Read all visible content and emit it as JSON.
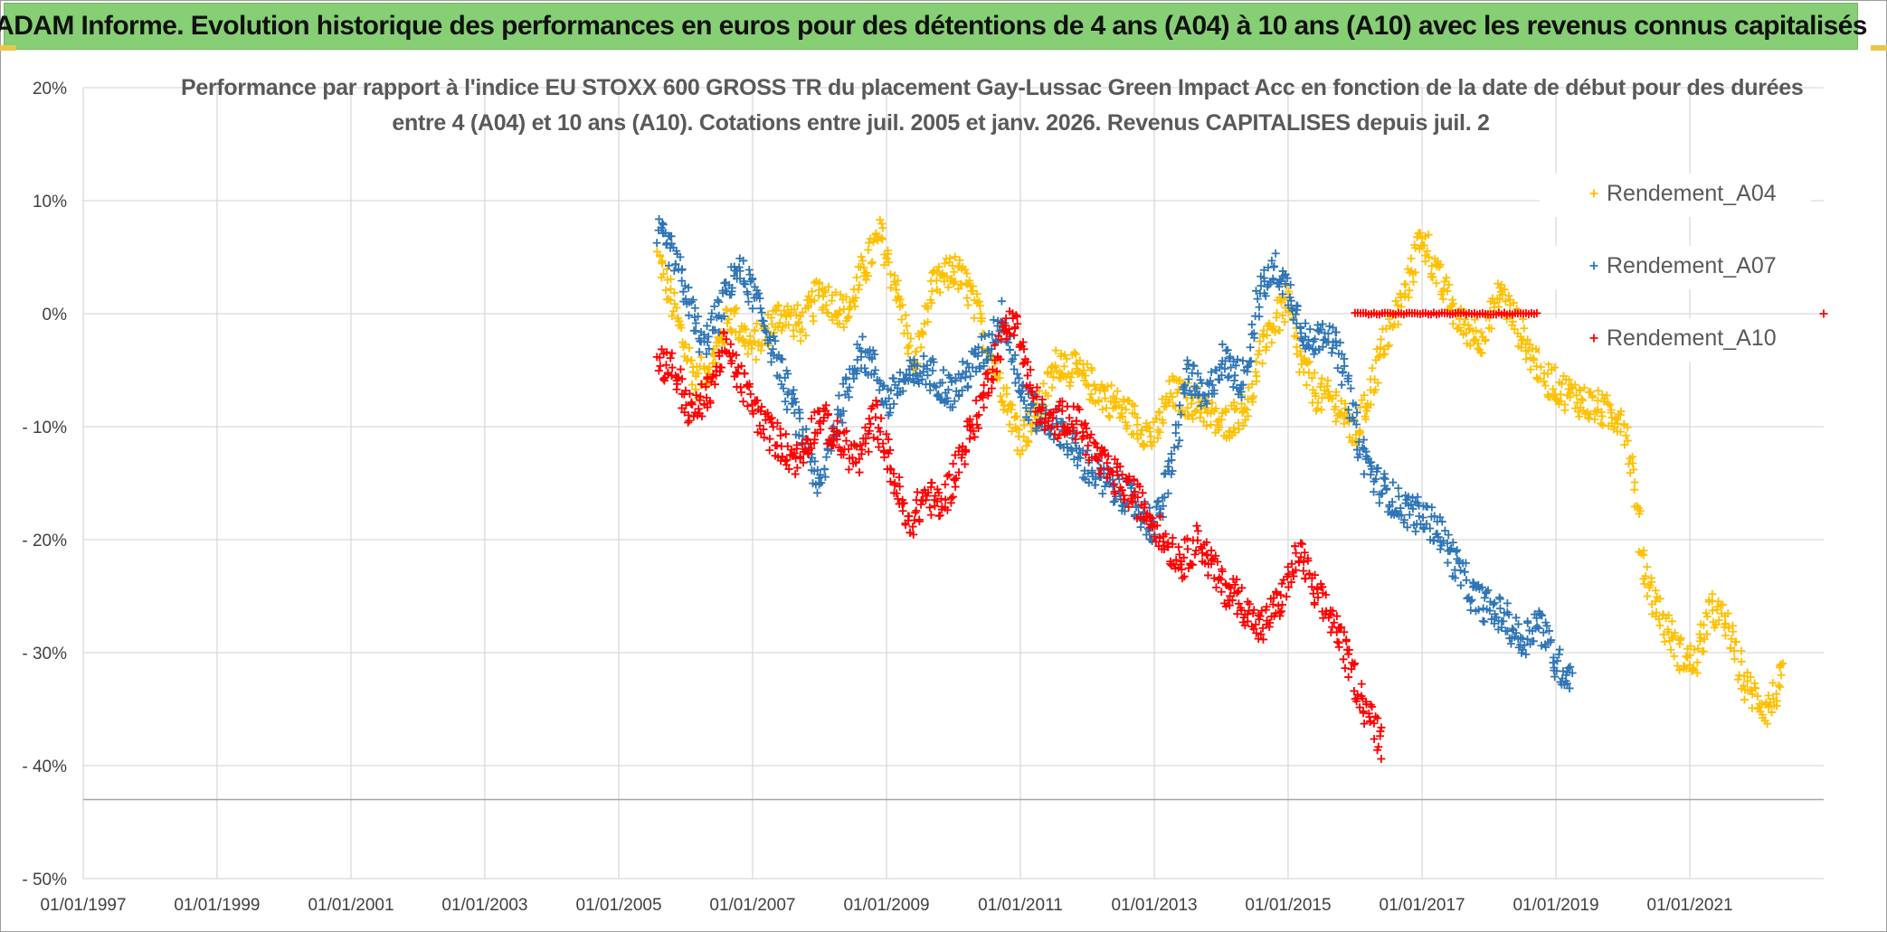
{
  "header": {
    "title": "ADAM Informe. Evolution historique des performances en euros pour des détentions de 4 ans (A04) à 10 ans (A10) avec les revenus connus capitalisés"
  },
  "chart_data": {
    "type": "scatter",
    "title": "Performance par rapport à l'indice EU STOXX 600 GROSS TR  du placement Gay-Lussac Green Impact Acc en fonction de la date de début pour des durées",
    "subtitle": "entre 4 (A04) et 10 ans (A10). Cotations entre juil. 2005 et janv. 2026. Revenus CAPITALISES depuis juil. 2",
    "xlabel": "",
    "ylabel": "",
    "x_range": [
      "1997-01-01",
      "2023-01-01"
    ],
    "x_ticks": [
      "01/01/1997",
      "01/01/1999",
      "01/01/2001",
      "01/01/2003",
      "01/01/2005",
      "01/01/2007",
      "01/01/2009",
      "01/01/2011",
      "01/01/2013",
      "01/01/2015",
      "01/01/2017",
      "01/01/2019",
      "01/01/2021"
    ],
    "ylim": [
      -50,
      20
    ],
    "y_ticks": [
      "20%",
      "10%",
      "0%",
      "- 10%",
      "- 20%",
      "- 30%",
      "- 40%",
      "- 50%"
    ],
    "y_tick_values": [
      20,
      10,
      0,
      -10,
      -20,
      -30,
      -40,
      -50
    ],
    "grid": true,
    "legend_position": "right",
    "marker": "+",
    "series": [
      {
        "name": "Rendement_A04",
        "color": "#ffc000",
        "points": [
          [
            "2005-08-01",
            5
          ],
          [
            "2005-10-01",
            2
          ],
          [
            "2006-01-01",
            -3
          ],
          [
            "2006-03-01",
            -6
          ],
          [
            "2006-06-01",
            -4
          ],
          [
            "2006-09-01",
            0
          ],
          [
            "2007-01-01",
            -3
          ],
          [
            "2007-06-01",
            0
          ],
          [
            "2007-10-01",
            -1
          ],
          [
            "2008-01-01",
            2
          ],
          [
            "2008-06-01",
            0
          ],
          [
            "2008-09-01",
            4
          ],
          [
            "2008-12-01",
            7
          ],
          [
            "2009-03-01",
            2
          ],
          [
            "2009-06-01",
            -5
          ],
          [
            "2009-09-01",
            2
          ],
          [
            "2010-01-01",
            4
          ],
          [
            "2010-04-01",
            2
          ],
          [
            "2010-08-01",
            -4
          ],
          [
            "2011-01-01",
            -11
          ],
          [
            "2011-04-01",
            -9
          ],
          [
            "2011-08-01",
            -4
          ],
          [
            "2012-01-01",
            -6
          ],
          [
            "2012-06-01",
            -8
          ],
          [
            "2013-01-01",
            -11
          ],
          [
            "2013-04-01",
            -7
          ],
          [
            "2013-09-01",
            -8
          ],
          [
            "2014-01-01",
            -10
          ],
          [
            "2014-06-01",
            -8
          ],
          [
            "2014-09-01",
            -2
          ],
          [
            "2015-01-01",
            1
          ],
          [
            "2015-03-01",
            -4
          ],
          [
            "2015-06-01",
            -7
          ],
          [
            "2015-10-01",
            -8
          ],
          [
            "2016-01-01",
            -11
          ],
          [
            "2016-03-01",
            -8
          ],
          [
            "2016-06-01",
            -3
          ],
          [
            "2016-10-01",
            2
          ],
          [
            "2017-01-01",
            7
          ],
          [
            "2017-04-01",
            3
          ],
          [
            "2017-08-01",
            -1
          ],
          [
            "2017-12-01",
            -2
          ],
          [
            "2018-03-01",
            2
          ],
          [
            "2018-06-01",
            -1
          ],
          [
            "2018-09-01",
            -4
          ],
          [
            "2018-12-01",
            -6
          ],
          [
            "2019-03-01",
            -7
          ],
          [
            "2019-07-01",
            -8
          ],
          [
            "2019-11-01",
            -9
          ],
          [
            "2020-01-01",
            -9
          ],
          [
            "2020-03-01",
            -15
          ],
          [
            "2020-05-01",
            -23
          ],
          [
            "2020-08-01",
            -27
          ],
          [
            "2020-11-01",
            -30
          ],
          [
            "2021-02-01",
            -31
          ],
          [
            "2021-05-01",
            -26
          ],
          [
            "2021-08-01",
            -28
          ],
          [
            "2021-11-01",
            -33
          ],
          [
            "2022-03-01",
            -35
          ],
          [
            "2022-06-01",
            -32
          ]
        ]
      },
      {
        "name": "Rendement_A07",
        "color": "#2e75b6",
        "points": [
          [
            "2005-08-01",
            7
          ],
          [
            "2005-11-01",
            5
          ],
          [
            "2006-01-01",
            2
          ],
          [
            "2006-04-01",
            -3
          ],
          [
            "2006-07-01",
            0
          ],
          [
            "2006-10-01",
            4
          ],
          [
            "2007-01-01",
            2
          ],
          [
            "2007-04-01",
            -2
          ],
          [
            "2007-08-01",
            -8
          ],
          [
            "2007-11-01",
            -12
          ],
          [
            "2008-01-01",
            -16
          ],
          [
            "2008-03-01",
            -11
          ],
          [
            "2008-06-01",
            -7
          ],
          [
            "2008-08-01",
            -3
          ],
          [
            "2008-11-01",
            -5
          ],
          [
            "2009-01-01",
            -8
          ],
          [
            "2009-04-01",
            -6
          ],
          [
            "2009-08-01",
            -5
          ],
          [
            "2010-01-01",
            -7
          ],
          [
            "2010-04-01",
            -5
          ],
          [
            "2010-07-01",
            -3
          ],
          [
            "2010-10-01",
            0
          ],
          [
            "2011-01-01",
            -7
          ],
          [
            "2011-04-01",
            -9
          ],
          [
            "2011-08-01",
            -10
          ],
          [
            "2011-12-01",
            -13
          ],
          [
            "2012-04-01",
            -15
          ],
          [
            "2012-08-01",
            -16
          ],
          [
            "2013-01-01",
            -19
          ],
          [
            "2013-04-01",
            -14
          ],
          [
            "2013-07-01",
            -5
          ],
          [
            "2013-10-01",
            -8
          ],
          [
            "2014-01-01",
            -4
          ],
          [
            "2014-05-01",
            -6
          ],
          [
            "2014-08-01",
            2
          ],
          [
            "2014-11-01",
            4
          ],
          [
            "2015-02-01",
            1
          ],
          [
            "2015-05-01",
            -3
          ],
          [
            "2015-08-01",
            -1
          ],
          [
            "2015-11-01",
            -5
          ],
          [
            "2016-02-01",
            -12
          ],
          [
            "2016-05-01",
            -15
          ],
          [
            "2016-09-01",
            -17
          ],
          [
            "2017-01-01",
            -18
          ],
          [
            "2017-04-01",
            -19
          ],
          [
            "2017-07-01",
            -22
          ],
          [
            "2017-10-01",
            -25
          ],
          [
            "2018-01-01",
            -26
          ],
          [
            "2018-04-01",
            -27
          ],
          [
            "2018-07-01",
            -29
          ],
          [
            "2018-10-01",
            -27
          ],
          [
            "2019-01-01",
            -31
          ],
          [
            "2019-04-01",
            -32
          ]
        ]
      },
      {
        "name": "Rendement_A10",
        "color": "#ff0000",
        "points": [
          [
            "2005-08-01",
            -4
          ],
          [
            "2005-11-01",
            -5
          ],
          [
            "2006-02-01",
            -9
          ],
          [
            "2006-05-01",
            -7
          ],
          [
            "2006-08-01",
            -3
          ],
          [
            "2006-11-01",
            -6
          ],
          [
            "2007-02-01",
            -9
          ],
          [
            "2007-05-01",
            -11
          ],
          [
            "2007-09-01",
            -13
          ],
          [
            "2008-01-01",
            -9
          ],
          [
            "2008-04-01",
            -11
          ],
          [
            "2008-08-01",
            -13
          ],
          [
            "2008-11-01",
            -9
          ],
          [
            "2009-02-01",
            -14
          ],
          [
            "2009-05-01",
            -19
          ],
          [
            "2009-08-01",
            -16
          ],
          [
            "2009-11-01",
            -17
          ],
          [
            "2010-02-01",
            -13
          ],
          [
            "2010-06-01",
            -8
          ],
          [
            "2010-09-01",
            -3
          ],
          [
            "2010-12-01",
            0
          ],
          [
            "2011-03-01",
            -7
          ],
          [
            "2011-06-01",
            -10
          ],
          [
            "2011-09-01",
            -9
          ],
          [
            "2011-12-01",
            -10
          ],
          [
            "2012-03-01",
            -13
          ],
          [
            "2012-07-01",
            -15
          ],
          [
            "2012-11-01",
            -17
          ],
          [
            "2013-03-01",
            -20
          ],
          [
            "2013-06-01",
            -22
          ],
          [
            "2013-09-01",
            -20
          ],
          [
            "2014-01-01",
            -24
          ],
          [
            "2014-04-01",
            -25
          ],
          [
            "2014-08-01",
            -28
          ],
          [
            "2014-12-01",
            -25
          ],
          [
            "2015-03-01",
            -21
          ],
          [
            "2015-06-01",
            -25
          ],
          [
            "2015-09-01",
            -27
          ],
          [
            "2015-12-01",
            -31
          ],
          [
            "2016-03-01",
            -35
          ],
          [
            "2016-06-01",
            -38
          ]
        ],
        "flat_segment": {
          "from": "2016-01-01",
          "to": "2018-10-01",
          "value": 0
        },
        "extra_points": [
          [
            "2023-01-01",
            0
          ]
        ]
      }
    ]
  }
}
